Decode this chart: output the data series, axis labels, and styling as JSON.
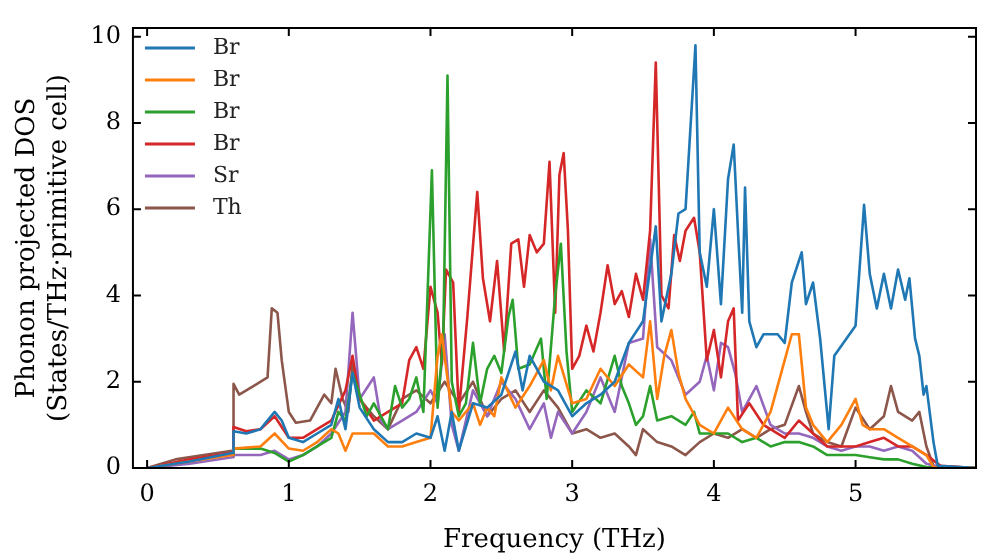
{
  "chart_data": {
    "type": "line",
    "xlabel": "Frequency (THz)",
    "ylabel": "Phonon projected DOS\n(States/THz·primitive cell)",
    "xlim": [
      -0.1,
      5.85
    ],
    "ylim": [
      0,
      10.2
    ],
    "xticks": [
      0,
      1,
      2,
      3,
      4,
      5
    ],
    "yticks": [
      0,
      2,
      4,
      6,
      8,
      10
    ],
    "grid": false,
    "legend": "top left",
    "marker": "none",
    "line_style": "solid",
    "series": [
      {
        "name": "Br",
        "color": "#1f77b4",
        "x": [
          0,
          0.3,
          0.6,
          0.61,
          0.7,
          0.8,
          0.9,
          0.95,
          1.0,
          1.1,
          1.2,
          1.3,
          1.35,
          1.4,
          1.45,
          1.5,
          1.6,
          1.7,
          1.8,
          1.9,
          2.0,
          2.05,
          2.1,
          2.15,
          2.2,
          2.3,
          2.4,
          2.5,
          2.6,
          2.65,
          2.7,
          2.8,
          2.9,
          3.0,
          3.1,
          3.2,
          3.3,
          3.4,
          3.5,
          3.59,
          3.63,
          3.7,
          3.75,
          3.8,
          3.87,
          3.9,
          3.95,
          4.0,
          4.05,
          4.1,
          4.14,
          4.17,
          4.2,
          4.22,
          4.25,
          4.3,
          4.35,
          4.45,
          4.5,
          4.55,
          4.62,
          4.65,
          4.7,
          4.75,
          4.81,
          4.85,
          5.0,
          5.06,
          5.1,
          5.15,
          5.2,
          5.25,
          5.3,
          5.35,
          5.38,
          5.42,
          5.45,
          5.48,
          5.5,
          5.55,
          5.58,
          5.85
        ],
        "values": [
          0,
          0.15,
          0.35,
          0.85,
          0.8,
          0.9,
          1.3,
          1.1,
          0.7,
          0.6,
          0.8,
          1.0,
          1.6,
          0.9,
          2.2,
          1.4,
          0.9,
          0.6,
          0.6,
          0.8,
          0.7,
          1.2,
          0.4,
          1.3,
          0.4,
          1.5,
          1.4,
          1.7,
          2.7,
          1.8,
          2.6,
          2.0,
          1.8,
          1.2,
          1.5,
          1.7,
          2.0,
          2.9,
          3.4,
          5.6,
          3.4,
          4.5,
          5.9,
          6.0,
          9.8,
          5.0,
          4.2,
          6.0,
          3.8,
          6.7,
          7.5,
          5.5,
          3.6,
          6.5,
          3.4,
          2.8,
          3.1,
          3.1,
          2.9,
          4.3,
          5.0,
          3.8,
          4.3,
          3.0,
          0.9,
          2.6,
          3.3,
          6.1,
          4.5,
          3.7,
          4.5,
          3.7,
          4.6,
          3.9,
          4.4,
          3.0,
          2.6,
          1.7,
          1.9,
          0.6,
          0.05,
          0
        ]
      },
      {
        "name": "Br",
        "color": "#ff7f0e",
        "x": [
          0,
          0.3,
          0.6,
          0.61,
          0.8,
          0.9,
          1.0,
          1.1,
          1.2,
          1.3,
          1.35,
          1.4,
          1.45,
          1.6,
          1.7,
          1.8,
          1.9,
          2.0,
          2.05,
          2.08,
          2.15,
          2.2,
          2.3,
          2.35,
          2.4,
          2.45,
          2.5,
          2.6,
          2.7,
          2.8,
          2.85,
          2.9,
          3.0,
          3.1,
          3.2,
          3.3,
          3.4,
          3.5,
          3.55,
          3.6,
          3.65,
          3.7,
          3.75,
          3.8,
          3.9,
          4.0,
          4.1,
          4.2,
          4.3,
          4.4,
          4.5,
          4.55,
          4.6,
          4.65,
          4.7,
          4.8,
          4.9,
          5.0,
          5.05,
          5.1,
          5.2,
          5.3,
          5.4,
          5.5,
          5.55,
          5.85
        ],
        "values": [
          0,
          0.15,
          0.3,
          0.45,
          0.5,
          0.8,
          0.45,
          0.4,
          0.6,
          0.9,
          0.8,
          0.4,
          0.8,
          0.8,
          0.5,
          0.5,
          0.6,
          0.7,
          2.6,
          3.1,
          1.3,
          1.1,
          1.5,
          1.0,
          1.4,
          1.2,
          2.1,
          1.4,
          1.9,
          2.5,
          1.8,
          2.6,
          1.5,
          1.6,
          2.3,
          1.9,
          2.4,
          2.1,
          3.4,
          1.6,
          2.6,
          3.2,
          2.2,
          1.6,
          1.0,
          0.8,
          1.4,
          0.9,
          0.7,
          1.3,
          2.5,
          3.1,
          3.1,
          1.4,
          1.0,
          0.6,
          1.0,
          1.6,
          1.0,
          0.9,
          0.9,
          0.7,
          0.5,
          0.3,
          0.02,
          0
        ]
      },
      {
        "name": "Br",
        "color": "#2ca02c",
        "x": [
          0.6,
          0.61,
          0.8,
          0.9,
          1.0,
          1.1,
          1.2,
          1.3,
          1.35,
          1.4,
          1.45,
          1.5,
          1.55,
          1.6,
          1.7,
          1.75,
          1.8,
          1.85,
          1.9,
          1.95,
          2.01,
          2.05,
          2.09,
          2.12,
          2.15,
          2.2,
          2.25,
          2.3,
          2.35,
          2.4,
          2.45,
          2.5,
          2.55,
          2.58,
          2.62,
          2.7,
          2.78,
          2.82,
          2.88,
          2.92,
          2.96,
          3.0,
          3.1,
          3.2,
          3.3,
          3.35,
          3.4,
          3.45,
          3.5,
          3.55,
          3.6,
          3.7,
          3.8,
          3.86,
          3.9,
          4.0,
          4.1,
          4.2,
          4.3,
          4.4,
          4.5,
          4.6,
          4.7,
          4.8,
          4.9,
          5.0,
          5.1,
          5.2,
          5.3,
          5.4,
          5.5,
          5.85
        ],
        "values": [
          0.3,
          0.45,
          0.45,
          0.35,
          0.15,
          0.3,
          0.5,
          0.7,
          1.3,
          1.1,
          2.2,
          1.7,
          1.2,
          1.5,
          0.9,
          1.9,
          1.4,
          1.6,
          2.1,
          1.3,
          6.9,
          1.4,
          3.0,
          9.1,
          2.0,
          1.2,
          1.5,
          2.9,
          1.5,
          2.3,
          2.6,
          2.2,
          3.5,
          3.9,
          2.3,
          2.4,
          3.0,
          1.6,
          4.0,
          5.2,
          2.7,
          1.3,
          1.8,
          1.5,
          2.6,
          1.9,
          1.5,
          1.0,
          1.2,
          1.9,
          1.1,
          1.2,
          1.0,
          1.3,
          0.8,
          0.8,
          0.8,
          0.6,
          0.7,
          0.5,
          0.6,
          0.6,
          0.5,
          0.3,
          0.3,
          0.3,
          0.25,
          0.2,
          0.2,
          0.1,
          0.02,
          0
        ]
      },
      {
        "name": "Br",
        "color": "#d62728",
        "x": [
          0,
          0.3,
          0.6,
          0.61,
          0.7,
          0.8,
          0.9,
          1.0,
          1.1,
          1.2,
          1.3,
          1.4,
          1.45,
          1.5,
          1.6,
          1.7,
          1.8,
          1.85,
          1.9,
          1.95,
          2.0,
          2.05,
          2.08,
          2.11,
          2.16,
          2.2,
          2.26,
          2.33,
          2.37,
          2.42,
          2.47,
          2.52,
          2.57,
          2.62,
          2.66,
          2.7,
          2.75,
          2.8,
          2.84,
          2.88,
          2.91,
          2.94,
          2.97,
          3.0,
          3.05,
          3.1,
          3.15,
          3.2,
          3.25,
          3.3,
          3.35,
          3.4,
          3.45,
          3.5,
          3.55,
          3.59,
          3.63,
          3.68,
          3.72,
          3.76,
          3.8,
          3.86,
          3.9,
          3.95,
          4.0,
          4.05,
          4.1,
          4.14,
          4.17,
          4.25,
          4.35,
          4.5,
          4.6,
          4.7,
          4.8,
          4.9,
          5.0,
          5.1,
          5.2,
          5.3,
          5.4,
          5.5,
          5.6,
          5.85
        ],
        "values": [
          0,
          0.2,
          0.35,
          0.95,
          0.85,
          0.9,
          1.2,
          0.7,
          0.7,
          0.9,
          1.1,
          1.8,
          2.6,
          1.6,
          1.1,
          1.3,
          1.5,
          2.5,
          2.8,
          2.3,
          4.2,
          3.6,
          2.4,
          4.6,
          4.3,
          1.3,
          3.5,
          6.4,
          4.4,
          3.4,
          4.8,
          2.7,
          5.2,
          5.3,
          4.2,
          5.4,
          5.0,
          5.2,
          7.1,
          3.6,
          6.8,
          7.3,
          5.5,
          2.3,
          2.6,
          3.3,
          2.7,
          3.6,
          4.7,
          3.8,
          4.1,
          3.5,
          4.5,
          3.9,
          5.5,
          9.4,
          4.0,
          3.7,
          5.4,
          4.8,
          5.5,
          5.8,
          5.0,
          2.5,
          3.2,
          2.1,
          3.4,
          3.7,
          1.1,
          1.5,
          1.0,
          0.7,
          1.1,
          0.8,
          0.5,
          0.5,
          0.5,
          0.6,
          0.7,
          0.5,
          0.5,
          0.3,
          0.05,
          0
        ]
      },
      {
        "name": "Sr",
        "color": "#9467bd",
        "x": [
          0,
          0.3,
          0.6,
          0.61,
          0.8,
          0.9,
          1.0,
          1.1,
          1.2,
          1.3,
          1.4,
          1.45,
          1.5,
          1.6,
          1.65,
          1.7,
          1.8,
          1.9,
          2.0,
          2.05,
          2.1,
          2.15,
          2.2,
          2.3,
          2.4,
          2.5,
          2.6,
          2.7,
          2.8,
          2.85,
          2.9,
          3.0,
          3.1,
          3.2,
          3.3,
          3.4,
          3.5,
          3.55,
          3.6,
          3.7,
          3.8,
          3.9,
          3.95,
          4.0,
          4.05,
          4.1,
          4.15,
          4.2,
          4.3,
          4.4,
          4.5,
          4.6,
          4.7,
          4.8,
          4.9,
          5.0,
          5.1,
          5.2,
          5.3,
          5.4,
          5.5,
          5.6,
          5.85
        ],
        "values": [
          0,
          0.1,
          0.25,
          0.3,
          0.3,
          0.4,
          0.2,
          0.3,
          0.5,
          0.8,
          1.3,
          3.6,
          1.6,
          2.1,
          1.1,
          0.9,
          1.1,
          1.3,
          1.8,
          1.5,
          3.1,
          1.0,
          0.4,
          1.8,
          1.2,
          2.0,
          1.6,
          0.9,
          1.5,
          0.7,
          1.3,
          0.8,
          1.3,
          2.1,
          1.3,
          2.9,
          3.0,
          5.3,
          2.8,
          2.5,
          1.7,
          2.0,
          2.6,
          1.8,
          2.9,
          2.8,
          2.2,
          1.3,
          1.9,
          1.0,
          0.8,
          0.8,
          0.7,
          0.5,
          0.4,
          0.5,
          0.5,
          0.4,
          0.5,
          0.4,
          0.1,
          0.02,
          0
        ]
      },
      {
        "name": "Th",
        "color": "#8c564b",
        "x": [
          0,
          0.2,
          0.4,
          0.6,
          0.61,
          0.65,
          0.75,
          0.85,
          0.88,
          0.92,
          0.95,
          1.0,
          1.05,
          1.15,
          1.25,
          1.3,
          1.33,
          1.38,
          1.42,
          1.45,
          1.5,
          1.6,
          1.7,
          1.8,
          1.9,
          2.0,
          2.1,
          2.2,
          2.3,
          2.4,
          2.5,
          2.6,
          2.7,
          2.8,
          2.9,
          3.0,
          3.1,
          3.2,
          3.3,
          3.4,
          3.45,
          3.5,
          3.6,
          3.7,
          3.8,
          3.9,
          4.0,
          4.1,
          4.2,
          4.3,
          4.4,
          4.5,
          4.6,
          4.65,
          4.7,
          4.8,
          4.9,
          5.0,
          5.1,
          5.2,
          5.25,
          5.3,
          5.4,
          5.45,
          5.5,
          5.55,
          5.85
        ],
        "values": [
          0,
          0.2,
          0.3,
          0.4,
          1.95,
          1.7,
          1.9,
          2.1,
          3.7,
          3.6,
          2.5,
          1.3,
          1.05,
          1.1,
          1.7,
          1.5,
          2.3,
          1.6,
          1.3,
          2.4,
          1.6,
          1.2,
          0.9,
          1.6,
          1.8,
          1.5,
          2.0,
          1.5,
          2.0,
          1.2,
          1.6,
          1.8,
          1.3,
          1.8,
          1.4,
          0.8,
          0.9,
          0.7,
          0.8,
          0.5,
          0.3,
          0.9,
          0.6,
          0.5,
          0.3,
          0.6,
          0.8,
          0.7,
          0.9,
          0.7,
          0.9,
          1.0,
          1.9,
          1.3,
          0.8,
          0.6,
          0.5,
          1.4,
          0.9,
          1.2,
          1.9,
          1.3,
          1.1,
          1.3,
          0.5,
          0.05,
          0
        ]
      }
    ]
  }
}
